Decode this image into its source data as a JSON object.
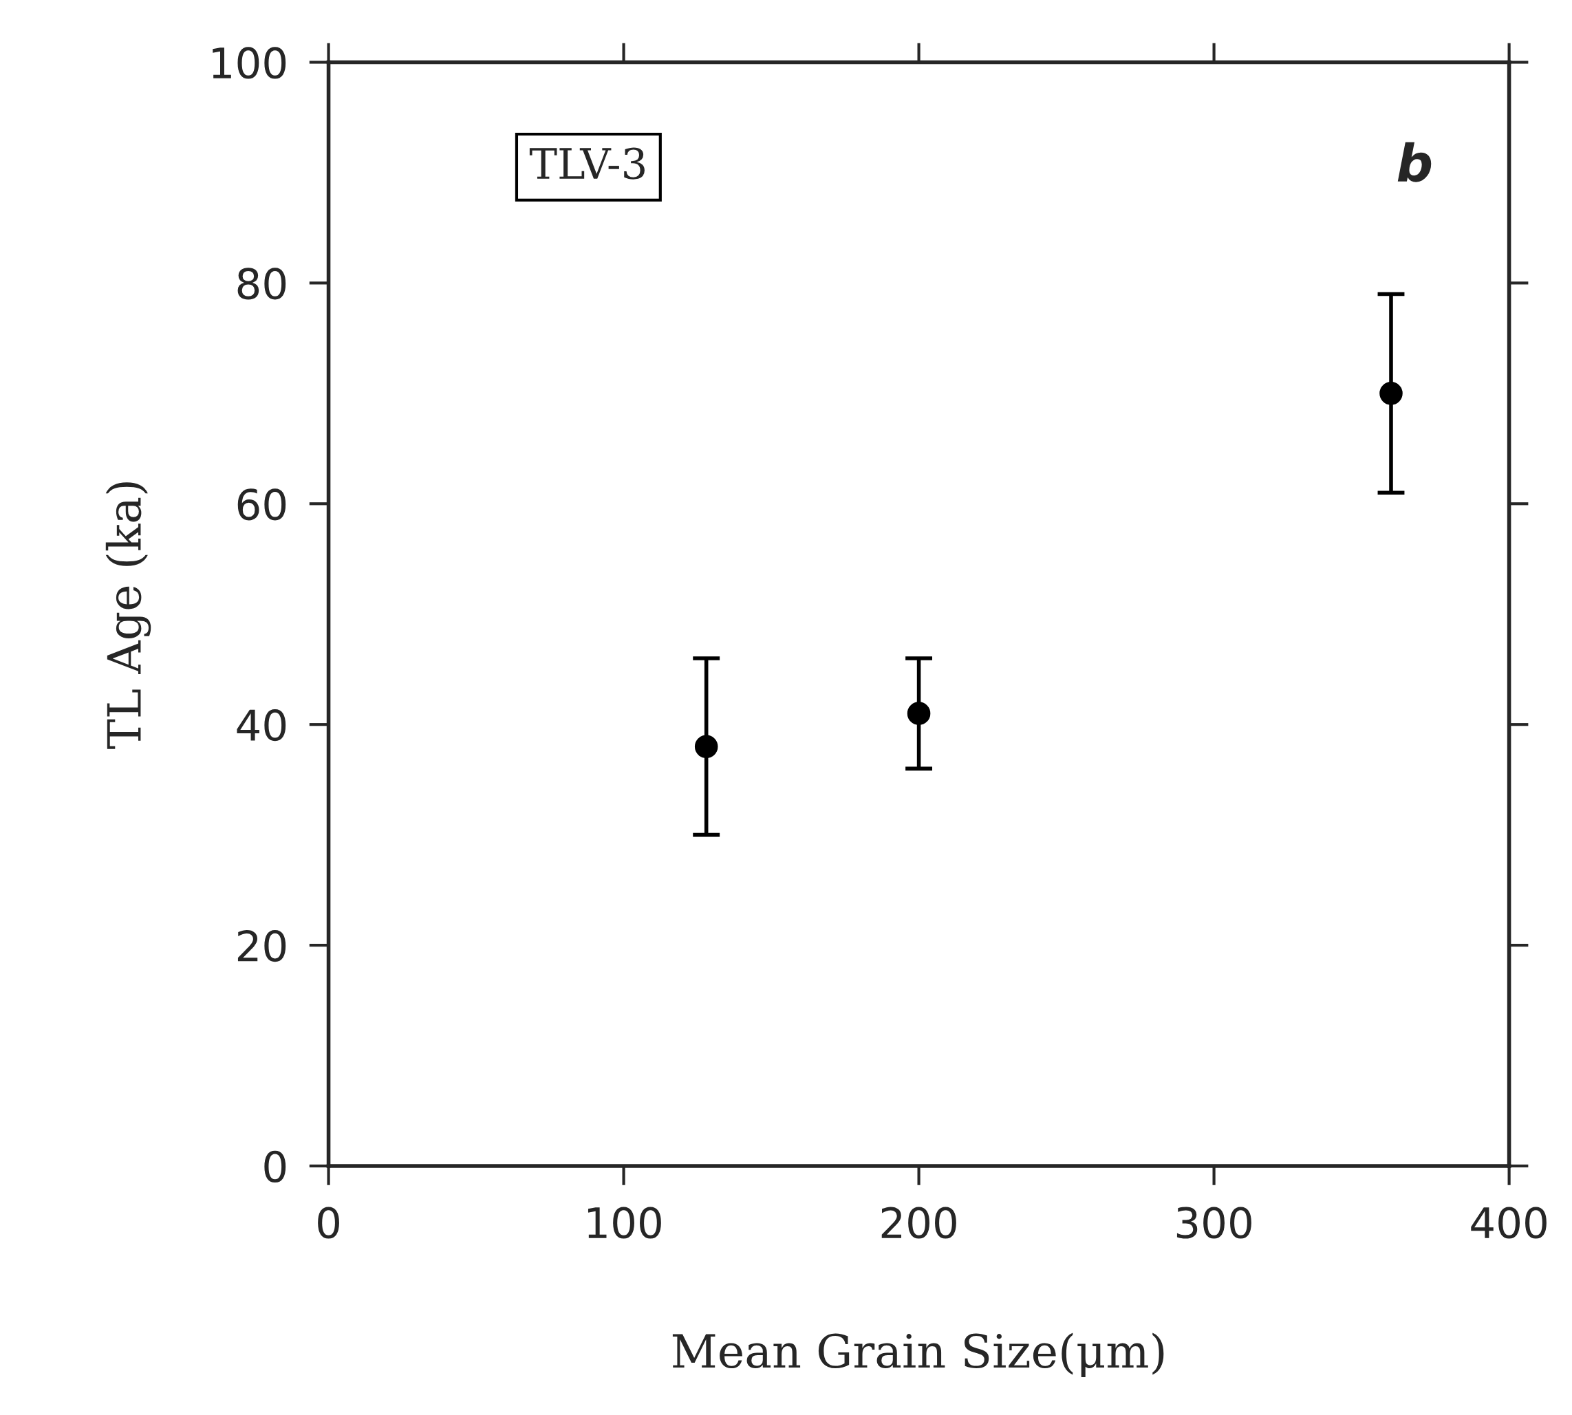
{
  "chart_data": {
    "type": "scatter",
    "xlabel": "Mean Grain Size(μm)",
    "ylabel": "TL Age (ka)",
    "x": [
      128,
      200,
      360
    ],
    "values": [
      38,
      41,
      70
    ],
    "errors": [
      8,
      5,
      9
    ],
    "color": "#000000",
    "marker": "circle",
    "xlim": [
      0,
      400
    ],
    "xticks": [
      0,
      100,
      200,
      300,
      400
    ],
    "ylim": [
      0,
      100
    ],
    "yticks": [
      0,
      20,
      40,
      60,
      80,
      100
    ],
    "grid": false,
    "legend": false,
    "annotations": [
      "TLV-3",
      "b"
    ]
  }
}
